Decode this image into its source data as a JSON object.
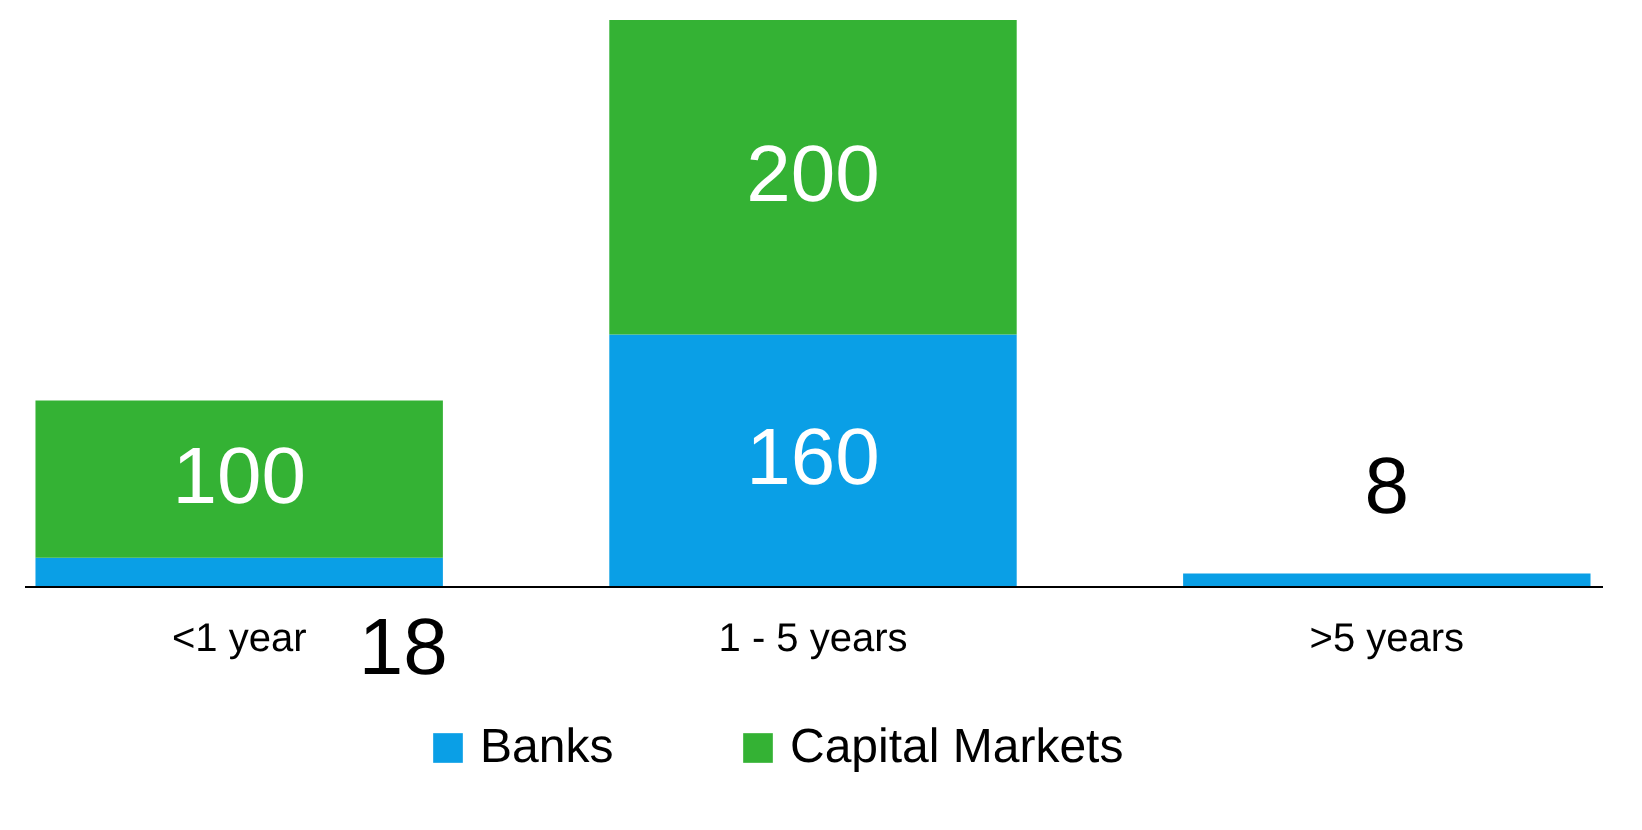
{
  "chart_data": {
    "type": "bar",
    "stacked": true,
    "categories": [
      "<1 year",
      "1 - 5 years",
      ">5 years"
    ],
    "series": [
      {
        "name": "Banks",
        "color": "#0a9fe6",
        "values": [
          18,
          160,
          8
        ]
      },
      {
        "name": "Capital Markets",
        "color": "#34b234",
        "values": [
          100,
          200,
          null
        ]
      }
    ],
    "data_labels": true,
    "legend": "bottom",
    "grid": false
  }
}
